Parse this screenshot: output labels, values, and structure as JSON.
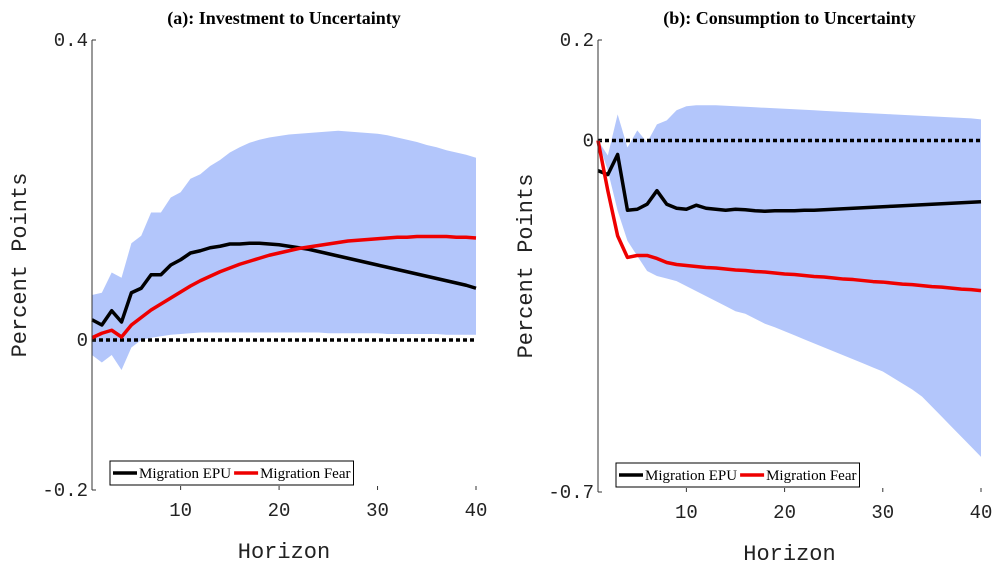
{
  "chart_data": [
    {
      "type": "line",
      "title": "(a): Investment to Uncertainty",
      "xlabel": "Horizon",
      "ylabel": "Percent Points",
      "x": [
        1,
        2,
        3,
        4,
        5,
        6,
        7,
        8,
        9,
        10,
        11,
        12,
        13,
        14,
        15,
        16,
        17,
        18,
        19,
        20,
        21,
        22,
        23,
        24,
        25,
        26,
        27,
        28,
        29,
        30,
        31,
        32,
        33,
        34,
        35,
        36,
        37,
        38,
        39,
        40
      ],
      "xlim": [
        1,
        40
      ],
      "ylim": [
        -0.2,
        0.4
      ],
      "xticks": [
        10,
        20,
        30,
        40
      ],
      "yticks": [
        -0.2,
        0,
        0.4
      ],
      "reference_line": 0,
      "band": {
        "color": "#b3c6fb",
        "upper": [
          0.06,
          0.063,
          0.09,
          0.083,
          0.129,
          0.139,
          0.17,
          0.17,
          0.19,
          0.197,
          0.215,
          0.221,
          0.232,
          0.24,
          0.25,
          0.257,
          0.263,
          0.267,
          0.27,
          0.272,
          0.274,
          0.275,
          0.276,
          0.277,
          0.278,
          0.279,
          0.278,
          0.277,
          0.276,
          0.275,
          0.273,
          0.27,
          0.267,
          0.264,
          0.26,
          0.257,
          0.253,
          0.25,
          0.247,
          0.243
        ],
        "lower": [
          -0.02,
          -0.03,
          -0.02,
          -0.04,
          -0.01,
          0.0,
          0.003,
          0.005,
          0.007,
          0.008,
          0.009,
          0.01,
          0.01,
          0.01,
          0.01,
          0.01,
          0.01,
          0.01,
          0.01,
          0.01,
          0.01,
          0.01,
          0.01,
          0.01,
          0.009,
          0.009,
          0.009,
          0.009,
          0.009,
          0.009,
          0.008,
          0.008,
          0.008,
          0.008,
          0.008,
          0.008,
          0.007,
          0.007,
          0.007,
          0.007
        ]
      },
      "series": [
        {
          "name": "Migration EPU",
          "color": "#000000",
          "values": [
            0.027,
            0.02,
            0.039,
            0.024,
            0.063,
            0.069,
            0.087,
            0.087,
            0.1,
            0.107,
            0.116,
            0.119,
            0.123,
            0.125,
            0.128,
            0.128,
            0.129,
            0.129,
            0.128,
            0.127,
            0.125,
            0.123,
            0.121,
            0.118,
            0.115,
            0.112,
            0.109,
            0.106,
            0.103,
            0.1,
            0.097,
            0.094,
            0.091,
            0.088,
            0.085,
            0.082,
            0.079,
            0.076,
            0.073,
            0.069
          ]
        },
        {
          "name": "Migration Fear",
          "color": "#ee0000",
          "values": [
            0.003,
            0.009,
            0.013,
            0.004,
            0.02,
            0.03,
            0.04,
            0.048,
            0.056,
            0.064,
            0.072,
            0.079,
            0.085,
            0.091,
            0.096,
            0.101,
            0.105,
            0.109,
            0.113,
            0.116,
            0.119,
            0.122,
            0.124,
            0.126,
            0.128,
            0.13,
            0.132,
            0.133,
            0.134,
            0.135,
            0.136,
            0.137,
            0.137,
            0.138,
            0.138,
            0.138,
            0.138,
            0.137,
            0.137,
            0.136
          ]
        }
      ]
    },
    {
      "type": "line",
      "title": "(b): Consumption to Uncertainty",
      "xlabel": "Horizon",
      "ylabel": "Percent Points",
      "x": [
        1,
        2,
        3,
        4,
        5,
        6,
        7,
        8,
        9,
        10,
        11,
        12,
        13,
        14,
        15,
        16,
        17,
        18,
        19,
        20,
        21,
        22,
        23,
        24,
        25,
        26,
        27,
        28,
        29,
        30,
        31,
        32,
        33,
        34,
        35,
        36,
        37,
        38,
        39,
        40
      ],
      "xlim": [
        1,
        40
      ],
      "ylim": [
        -0.7,
        0.2
      ],
      "xticks": [
        10,
        20,
        30,
        40
      ],
      "yticks": [
        -0.7,
        0,
        0.2
      ],
      "reference_line": 0,
      "band": {
        "color": "#b3c6fb",
        "upper": [
          0.0,
          -0.03,
          0.052,
          -0.014,
          0.02,
          -0.004,
          0.032,
          0.04,
          0.06,
          0.068,
          0.07,
          0.07,
          0.07,
          0.069,
          0.068,
          0.067,
          0.066,
          0.065,
          0.064,
          0.063,
          0.062,
          0.061,
          0.06,
          0.059,
          0.058,
          0.057,
          0.056,
          0.055,
          0.054,
          0.053,
          0.052,
          0.051,
          0.05,
          0.049,
          0.048,
          0.047,
          0.046,
          0.045,
          0.044,
          0.042
        ],
        "lower": [
          0.0,
          -0.06,
          -0.14,
          -0.2,
          -0.23,
          -0.26,
          -0.27,
          -0.275,
          -0.28,
          -0.29,
          -0.3,
          -0.31,
          -0.32,
          -0.33,
          -0.34,
          -0.345,
          -0.355,
          -0.365,
          -0.372,
          -0.38,
          -0.388,
          -0.396,
          -0.404,
          -0.412,
          -0.42,
          -0.428,
          -0.436,
          -0.444,
          -0.452,
          -0.46,
          -0.472,
          -0.484,
          -0.496,
          -0.51,
          -0.53,
          -0.55,
          -0.57,
          -0.59,
          -0.61,
          -0.63
        ]
      },
      "series": [
        {
          "name": "Migration EPU",
          "color": "#000000",
          "values": [
            -0.06,
            -0.068,
            -0.028,
            -0.139,
            -0.137,
            -0.127,
            -0.1,
            -0.127,
            -0.135,
            -0.137,
            -0.129,
            -0.135,
            -0.137,
            -0.139,
            -0.137,
            -0.138,
            -0.14,
            -0.141,
            -0.14,
            -0.14,
            -0.14,
            -0.139,
            -0.139,
            -0.138,
            -0.137,
            -0.136,
            -0.135,
            -0.134,
            -0.133,
            -0.132,
            -0.131,
            -0.13,
            -0.129,
            -0.128,
            -0.127,
            -0.126,
            -0.125,
            -0.124,
            -0.123,
            -0.122
          ]
        },
        {
          "name": "Migration Fear",
          "color": "#ee0000",
          "values": [
            0.0,
            -0.1,
            -0.19,
            -0.233,
            -0.229,
            -0.229,
            -0.235,
            -0.243,
            -0.247,
            -0.249,
            -0.251,
            -0.253,
            -0.254,
            -0.256,
            -0.258,
            -0.259,
            -0.261,
            -0.262,
            -0.264,
            -0.266,
            -0.267,
            -0.269,
            -0.271,
            -0.272,
            -0.274,
            -0.276,
            -0.277,
            -0.279,
            -0.281,
            -0.282,
            -0.284,
            -0.286,
            -0.287,
            -0.289,
            -0.291,
            -0.292,
            -0.294,
            -0.296,
            -0.297,
            -0.299
          ]
        }
      ]
    }
  ]
}
